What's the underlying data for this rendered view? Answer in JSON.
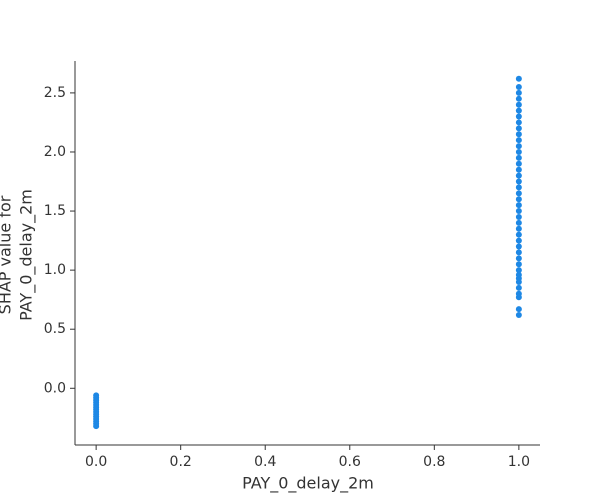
{
  "chart_data": {
    "type": "scatter",
    "xlabel": "PAY_0_delay_2m",
    "ylabel": [
      "SHAP value for",
      "PAY_0_delay_2m"
    ],
    "color": "#1e88e5",
    "x": [
      0,
      0,
      0,
      0,
      0,
      0,
      0,
      0,
      0,
      0,
      0,
      0,
      0,
      0,
      1,
      1,
      1,
      1,
      1,
      1,
      1,
      1,
      1,
      1,
      1,
      1,
      1,
      1,
      1,
      1,
      1,
      1,
      1,
      1,
      1,
      1,
      1,
      1,
      1,
      1,
      1,
      1,
      1,
      1,
      1,
      1,
      1,
      1,
      1,
      1,
      1,
      1,
      1,
      1,
      1
    ],
    "values": [
      -0.06,
      -0.08,
      -0.1,
      -0.12,
      -0.14,
      -0.16,
      -0.18,
      -0.2,
      -0.22,
      -0.24,
      -0.26,
      -0.28,
      -0.3,
      -0.32,
      0.62,
      0.67,
      0.77,
      0.8,
      0.85,
      0.9,
      0.93,
      0.96,
      1.0,
      1.05,
      1.1,
      1.15,
      1.2,
      1.25,
      1.3,
      1.35,
      1.4,
      1.45,
      1.5,
      1.55,
      1.6,
      1.65,
      1.7,
      1.75,
      1.8,
      1.85,
      1.9,
      1.95,
      2.0,
      2.05,
      2.1,
      2.15,
      2.2,
      2.25,
      2.3,
      2.35,
      2.4,
      2.45,
      2.5,
      2.55,
      2.62
    ],
    "xlim": [
      -0.05,
      1.05
    ],
    "ylim": [
      -0.48,
      2.77
    ],
    "xticks": [
      {
        "value": 0,
        "label": "0.0"
      },
      {
        "value": 0.2,
        "label": "0.2"
      },
      {
        "value": 0.4,
        "label": "0.4"
      },
      {
        "value": 0.6,
        "label": "0.6"
      },
      {
        "value": 0.8,
        "label": "0.8"
      },
      {
        "value": 1,
        "label": "1.0"
      }
    ],
    "yticks": [
      {
        "value": 0,
        "label": "0.0"
      },
      {
        "value": 0.5,
        "label": "0.5"
      },
      {
        "value": 1,
        "label": "1.0"
      },
      {
        "value": 1.5,
        "label": "1.5"
      },
      {
        "value": 2,
        "label": "2.0"
      },
      {
        "value": 2.5,
        "label": "2.5"
      }
    ]
  }
}
